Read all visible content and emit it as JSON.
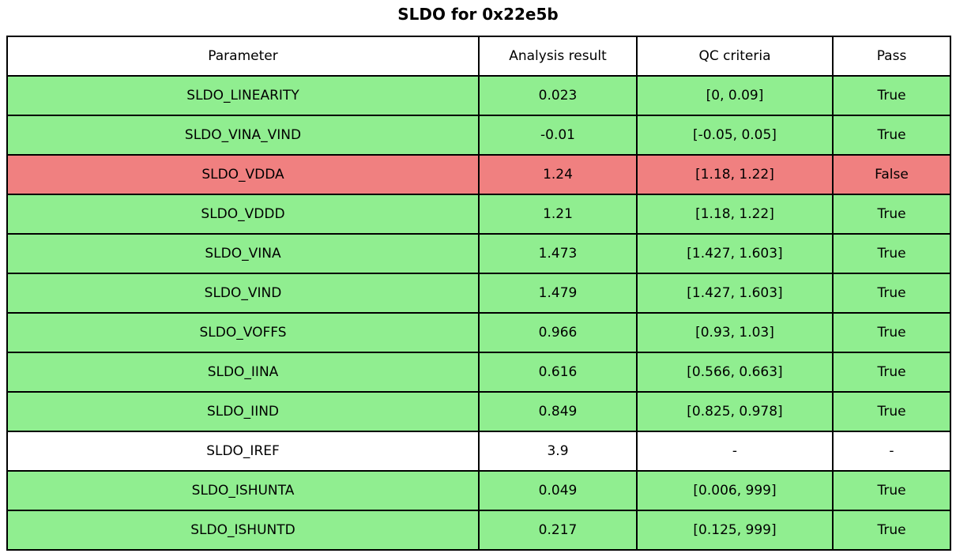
{
  "title": "SLDO for 0x22e5b",
  "colors": {
    "pass_green": "#90EE90",
    "fail_red": "#F08080",
    "neutral_white": "#FFFFFF",
    "border": "#000000",
    "text": "#000000"
  },
  "chart_data": {
    "type": "table",
    "title": "SLDO for 0x22e5b",
    "columns": [
      "Parameter",
      "Analysis result",
      "QC criteria",
      "Pass"
    ],
    "rows": [
      [
        "SLDO_LINEARITY",
        "0.023",
        "[0, 0.09]",
        "True"
      ],
      [
        "SLDO_VINA_VIND",
        "-0.01",
        "[-0.05, 0.05]",
        "True"
      ],
      [
        "SLDO_VDDA",
        "1.24",
        "[1.18, 1.22]",
        "False"
      ],
      [
        "SLDO_VDDD",
        "1.21",
        "[1.18, 1.22]",
        "True"
      ],
      [
        "SLDO_VINA",
        "1.473",
        "[1.427, 1.603]",
        "True"
      ],
      [
        "SLDO_VIND",
        "1.479",
        "[1.427, 1.603]",
        "True"
      ],
      [
        "SLDO_VOFFS",
        "0.966",
        "[0.93, 1.03]",
        "True"
      ],
      [
        "SLDO_IINA",
        "0.616",
        "[0.566, 0.663]",
        "True"
      ],
      [
        "SLDO_IIND",
        "0.849",
        "[0.825, 0.978]",
        "True"
      ],
      [
        "SLDO_IREF",
        "3.9",
        "-",
        "-"
      ],
      [
        "SLDO_ISHUNTA",
        "0.049",
        "[0.006, 999]",
        "True"
      ],
      [
        "SLDO_ISHUNTD",
        "0.217",
        "[0.125, 999]",
        "True"
      ]
    ],
    "row_status": [
      "pass",
      "pass",
      "fail",
      "pass",
      "pass",
      "pass",
      "pass",
      "pass",
      "pass",
      "none",
      "pass",
      "pass"
    ]
  }
}
